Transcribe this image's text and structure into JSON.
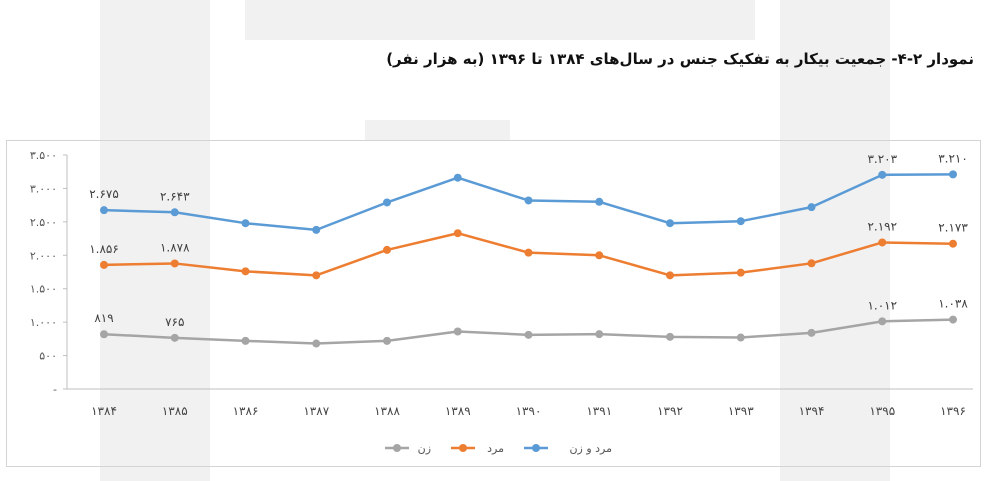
{
  "title": "نمودار ۲-۴- جمعیت بیکار به تفکیک جنس در سال‌های ۱۳۸۴ تا ۱۳۹۶ (به هزار نفر)",
  "chart_data": {
    "type": "line",
    "categories": [
      "۱۳۸۴",
      "۱۳۸۵",
      "۱۳۸۶",
      "۱۳۸۷",
      "۱۳۸۸",
      "۱۳۸۹",
      "۱۳۹۰",
      "۱۳۹۱",
      "۱۳۹۲",
      "۱۳۹۳",
      "۱۳۹۴",
      "۱۳۹۵",
      "۱۳۹۶"
    ],
    "ylim": [
      0,
      3500
    ],
    "yticks": [
      {
        "value": 0,
        "label": "-"
      },
      {
        "value": 500,
        "label": "۵۰۰"
      },
      {
        "value": 1000,
        "label": "۱.۰۰۰"
      },
      {
        "value": 1500,
        "label": "۱.۵۰۰"
      },
      {
        "value": 2000,
        "label": "۲.۰۰۰"
      },
      {
        "value": 2500,
        "label": "۲.۵۰۰"
      },
      {
        "value": 3000,
        "label": "۳.۰۰۰"
      },
      {
        "value": 3500,
        "label": "۳.۵۰۰"
      }
    ],
    "grid": false,
    "legend": "bottom-center",
    "series": [
      {
        "name": "مرد و زن",
        "color": "#5b9bd5",
        "values": [
          2675,
          2643,
          2480,
          2380,
          2790,
          3160,
          2820,
          2800,
          2480,
          2510,
          2720,
          3203,
          3210
        ],
        "labels": [
          {
            "index": 0,
            "text": "۲.۶۷۵"
          },
          {
            "index": 1,
            "text": "۲.۶۴۳"
          },
          {
            "index": 11,
            "text": "۳.۲۰۳"
          },
          {
            "index": 12,
            "text": "۳.۲۱۰"
          }
        ]
      },
      {
        "name": "مرد",
        "color": "#ed7d31",
        "values": [
          1856,
          1878,
          1760,
          1700,
          2080,
          2330,
          2040,
          2000,
          1700,
          1740,
          1880,
          2192,
          2173
        ],
        "labels": [
          {
            "index": 0,
            "text": "۱.۸۵۶"
          },
          {
            "index": 1,
            "text": "۱.۸۷۸"
          },
          {
            "index": 11,
            "text": "۲.۱۹۲"
          },
          {
            "index": 12,
            "text": "۲.۱۷۳"
          }
        ]
      },
      {
        "name": "زن",
        "color": "#a5a5a5",
        "values": [
          819,
          765,
          720,
          680,
          720,
          860,
          810,
          820,
          780,
          770,
          840,
          1012,
          1038
        ],
        "labels": [
          {
            "index": 0,
            "text": "۸۱۹"
          },
          {
            "index": 1,
            "text": "۷۶۵"
          },
          {
            "index": 11,
            "text": "۱.۰۱۲"
          },
          {
            "index": 12,
            "text": "۱.۰۳۸"
          }
        ]
      }
    ]
  }
}
